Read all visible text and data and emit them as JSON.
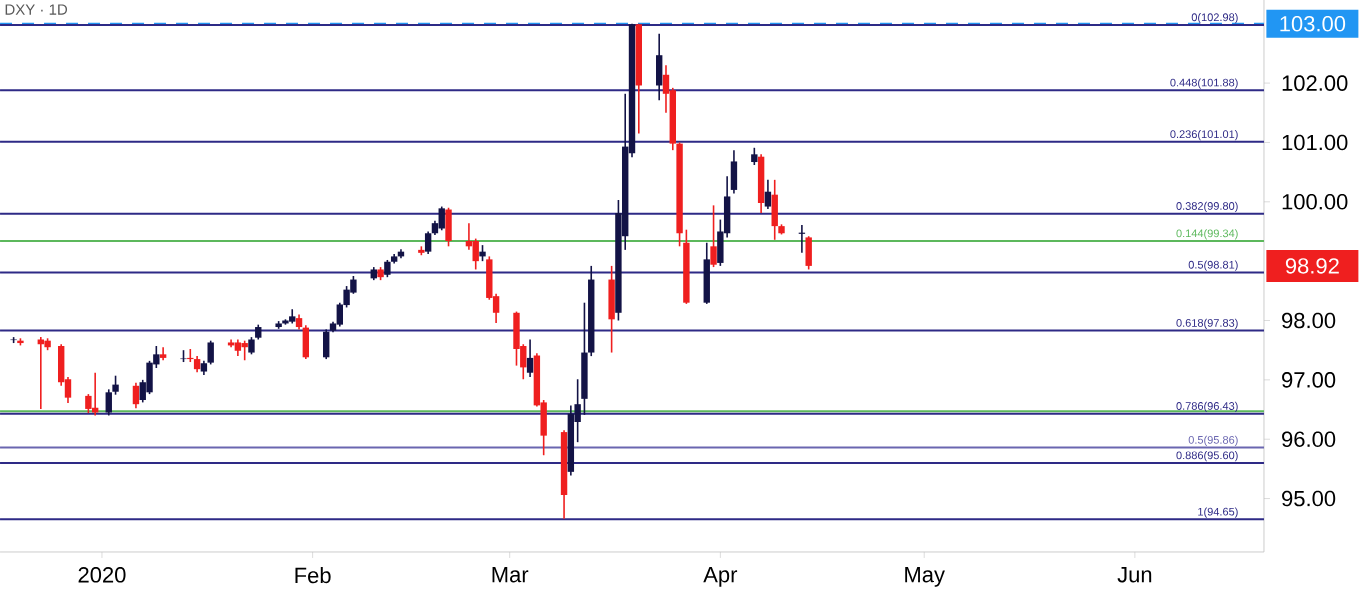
{
  "chart_data": {
    "type": "candlestick",
    "title": "DXY · 1D",
    "x": [
      "2019-12-19",
      "2019-12-20",
      "2019-12-23",
      "2019-12-24",
      "2019-12-26",
      "2019-12-27",
      "2019-12-30",
      "2019-12-31",
      "2020-01-02",
      "2020-01-03",
      "2020-01-06",
      "2020-01-07",
      "2020-01-08",
      "2020-01-09",
      "2020-01-10",
      "2020-01-13",
      "2020-01-14",
      "2020-01-15",
      "2020-01-16",
      "2020-01-17",
      "2020-01-20",
      "2020-01-21",
      "2020-01-22",
      "2020-01-23",
      "2020-01-24",
      "2020-01-27",
      "2020-01-28",
      "2020-01-29",
      "2020-01-30",
      "2020-01-31",
      "2020-02-03",
      "2020-02-04",
      "2020-02-05",
      "2020-02-06",
      "2020-02-07",
      "2020-02-10",
      "2020-02-11",
      "2020-02-12",
      "2020-02-13",
      "2020-02-14",
      "2020-02-17",
      "2020-02-18",
      "2020-02-19",
      "2020-02-20",
      "2020-02-21",
      "2020-02-24",
      "2020-02-25",
      "2020-02-26",
      "2020-02-27",
      "2020-02-28",
      "2020-03-02",
      "2020-03-03",
      "2020-03-04",
      "2020-03-05",
      "2020-03-06",
      "2020-03-09",
      "2020-03-10",
      "2020-03-11",
      "2020-03-12",
      "2020-03-13",
      "2020-03-16",
      "2020-03-17",
      "2020-03-18",
      "2020-03-19",
      "2020-03-20",
      "2020-03-23",
      "2020-03-24",
      "2020-03-25",
      "2020-03-26",
      "2020-03-27",
      "2020-03-30",
      "2020-03-31",
      "2020-04-01",
      "2020-04-02",
      "2020-04-03",
      "2020-04-06",
      "2020-04-07",
      "2020-04-08",
      "2020-04-09",
      "2020-04-10",
      "2020-04-13",
      "2020-04-14"
    ],
    "ohlc": [
      [
        97.67,
        97.72,
        97.62,
        97.68
      ],
      [
        97.66,
        97.7,
        97.58,
        97.62
      ],
      [
        97.68,
        97.72,
        96.51,
        97.6
      ],
      [
        97.66,
        97.7,
        97.5,
        97.55
      ],
      [
        97.57,
        97.6,
        96.9,
        96.96
      ],
      [
        97.01,
        97.05,
        96.61,
        96.7
      ],
      [
        96.73,
        96.76,
        96.44,
        96.51
      ],
      [
        96.53,
        97.12,
        96.4,
        96.45
      ],
      [
        96.45,
        96.84,
        96.4,
        96.79
      ],
      [
        96.8,
        97.07,
        96.75,
        96.92
      ],
      [
        96.9,
        96.95,
        96.52,
        96.59
      ],
      [
        96.66,
        97.0,
        96.62,
        96.96
      ],
      [
        96.79,
        97.32,
        96.76,
        97.29
      ],
      [
        97.26,
        97.57,
        97.2,
        97.43
      ],
      [
        97.43,
        97.55,
        97.33,
        97.37
      ],
      [
        97.35,
        97.5,
        97.3,
        97.36
      ],
      [
        97.37,
        97.52,
        97.3,
        97.35
      ],
      [
        97.35,
        97.4,
        97.13,
        97.18
      ],
      [
        97.14,
        97.32,
        97.08,
        97.28
      ],
      [
        97.29,
        97.66,
        97.26,
        97.63
      ],
      [
        97.63,
        97.68,
        97.55,
        97.58
      ],
      [
        97.63,
        97.68,
        97.4,
        97.49
      ],
      [
        97.62,
        97.66,
        97.33,
        97.55
      ],
      [
        97.46,
        97.72,
        97.43,
        97.68
      ],
      [
        97.71,
        97.93,
        97.68,
        97.89
      ],
      [
        97.89,
        97.99,
        97.86,
        97.95
      ],
      [
        97.95,
        98.02,
        97.93,
        98.0
      ],
      [
        97.98,
        98.19,
        97.95,
        98.07
      ],
      [
        98.04,
        98.1,
        97.85,
        97.89
      ],
      [
        97.88,
        97.92,
        97.35,
        97.38
      ],
      [
        97.38,
        97.85,
        97.35,
        97.81
      ],
      [
        97.83,
        97.98,
        97.8,
        97.95
      ],
      [
        97.93,
        98.3,
        97.9,
        98.27
      ],
      [
        98.26,
        98.58,
        98.22,
        98.52
      ],
      [
        98.47,
        98.75,
        98.45,
        98.69
      ],
      [
        98.71,
        98.9,
        98.68,
        98.86
      ],
      [
        98.86,
        98.9,
        98.68,
        98.73
      ],
      [
        98.77,
        99.02,
        98.73,
        98.99
      ],
      [
        98.99,
        99.12,
        98.96,
        99.08
      ],
      [
        99.08,
        99.2,
        99.05,
        99.16
      ],
      [
        99.19,
        99.25,
        99.1,
        99.14
      ],
      [
        99.16,
        99.5,
        99.12,
        99.47
      ],
      [
        99.47,
        99.68,
        99.44,
        99.64
      ],
      [
        99.55,
        99.92,
        99.52,
        99.89
      ],
      [
        99.87,
        99.9,
        99.25,
        99.34
      ],
      [
        99.34,
        99.64,
        99.19,
        99.25
      ],
      [
        99.34,
        99.38,
        98.86,
        99.0
      ],
      [
        99.08,
        99.27,
        99.0,
        99.16
      ],
      [
        99.03,
        99.08,
        98.35,
        98.38
      ],
      [
        98.41,
        98.45,
        97.96,
        98.13
      ],
      [
        98.13,
        98.15,
        97.24,
        97.52
      ],
      [
        97.57,
        97.6,
        97.01,
        97.21
      ],
      [
        97.12,
        97.68,
        97.05,
        97.37
      ],
      [
        97.41,
        97.45,
        96.55,
        96.57
      ],
      [
        96.62,
        96.66,
        95.73,
        96.06
      ],
      [
        96.12,
        96.15,
        94.66,
        95.06
      ],
      [
        95.45,
        96.57,
        95.39,
        96.43
      ],
      [
        96.29,
        97.01,
        95.95,
        96.59
      ],
      [
        96.68,
        98.3,
        96.41,
        97.46
      ],
      [
        97.46,
        98.92,
        97.4,
        98.69
      ],
      [
        98.69,
        98.92,
        97.46,
        98.02
      ],
      [
        98.13,
        100.03,
        98.0,
        99.81
      ],
      [
        99.42,
        101.82,
        99.19,
        100.93
      ],
      [
        100.82,
        103.0,
        100.75,
        102.99
      ],
      [
        102.99,
        103.0,
        101.15,
        101.96
      ],
      [
        101.96,
        102.83,
        101.71,
        102.47
      ],
      [
        102.14,
        102.3,
        101.5,
        101.82
      ],
      [
        101.88,
        101.92,
        100.87,
        100.98
      ],
      [
        100.98,
        101.0,
        99.25,
        99.47
      ],
      [
        99.31,
        99.53,
        98.28,
        98.3
      ],
      [
        98.3,
        99.31,
        98.28,
        99.03
      ],
      [
        99.25,
        99.94,
        98.9,
        98.94
      ],
      [
        98.97,
        99.7,
        98.92,
        99.5
      ],
      [
        99.47,
        100.43,
        99.4,
        100.09
      ],
      [
        100.2,
        100.87,
        100.14,
        100.68
      ],
      [
        100.67,
        100.91,
        100.62,
        100.8
      ],
      [
        100.76,
        100.8,
        99.81,
        99.98
      ],
      [
        99.92,
        100.37,
        99.88,
        100.17
      ],
      [
        100.12,
        100.37,
        99.36,
        99.59
      ],
      [
        99.59,
        99.62,
        99.45,
        99.47
      ],
      [
        99.46,
        99.61,
        99.14,
        99.48
      ],
      [
        99.4,
        99.42,
        98.86,
        98.92
      ]
    ],
    "colors": [
      "#131346",
      "#ef1f1f",
      "#ef1f1f",
      "#ef1f1f",
      "#ef1f1f",
      "#ef1f1f",
      "#ef1f1f",
      "#ef1f1f",
      "#131346",
      "#131346",
      "#ef1f1f",
      "#131346",
      "#131346",
      "#131346",
      "#ef1f1f",
      "#131346",
      "#ef1f1f",
      "#ef1f1f",
      "#131346",
      "#131346",
      "#ef1f1f",
      "#ef1f1f",
      "#ef1f1f",
      "#131346",
      "#131346",
      "#131346",
      "#131346",
      "#131346",
      "#ef1f1f",
      "#ef1f1f",
      "#131346",
      "#131346",
      "#131346",
      "#131346",
      "#131346",
      "#131346",
      "#ef1f1f",
      "#131346",
      "#131346",
      "#131346",
      "#ef1f1f",
      "#131346",
      "#131346",
      "#131346",
      "#ef1f1f",
      "#ef1f1f",
      "#ef1f1f",
      "#131346",
      "#ef1f1f",
      "#ef1f1f",
      "#ef1f1f",
      "#ef1f1f",
      "#131346",
      "#ef1f1f",
      "#ef1f1f",
      "#ef1f1f",
      "#131346",
      "#131346",
      "#131346",
      "#131346",
      "#ef1f1f",
      "#131346",
      "#131346",
      "#131346",
      "#ef1f1f",
      "#131346",
      "#ef1f1f",
      "#ef1f1f",
      "#ef1f1f",
      "#ef1f1f",
      "#131346",
      "#ef1f1f",
      "#131346",
      "#131346",
      "#131346",
      "#131346",
      "#ef1f1f",
      "#131346",
      "#ef1f1f",
      "#ef1f1f",
      "#131346",
      "#ef1f1f"
    ],
    "xlim": [
      "2019-12-17",
      "2020-06-20"
    ],
    "xticks": [
      {
        "value": "2020-01-01",
        "label": "2020"
      },
      {
        "value": "2020-02-01",
        "label": "Feb"
      },
      {
        "value": "2020-03-01",
        "label": "Mar"
      },
      {
        "value": "2020-04-01",
        "label": "Apr"
      },
      {
        "value": "2020-05-01",
        "label": "May"
      },
      {
        "value": "2020-06-01",
        "label": "Jun"
      }
    ],
    "ylim": [
      94.1,
      103.4
    ],
    "yticks": [
      {
        "value": 95,
        "label": "95.00"
      },
      {
        "value": 96,
        "label": "96.00"
      },
      {
        "value": 97,
        "label": "97.00"
      },
      {
        "value": 98,
        "label": "98.00"
      },
      {
        "value": 100,
        "label": "100.00"
      },
      {
        "value": 101,
        "label": "101.00"
      },
      {
        "value": 102,
        "label": "102.00"
      }
    ],
    "ref_lines": [
      {
        "axis": "y",
        "value": 103,
        "label": "103.00",
        "color": "#2196f3",
        "line_style": "dashed"
      },
      {
        "axis": "y",
        "value": 102.98,
        "label": "0(102.98)",
        "color": "#2e2a86"
      },
      {
        "axis": "y",
        "value": 101.88,
        "label": "0.448(101.88)",
        "color": "#2e2a86"
      },
      {
        "axis": "y",
        "value": 101.01,
        "label": "0.236(101.01)",
        "color": "#2e2a86"
      },
      {
        "axis": "y",
        "value": 99.8,
        "label": "0.382(99.80)",
        "color": "#2e2a86"
      },
      {
        "axis": "y",
        "value": 99.34,
        "label": "0.144(99.34)",
        "color": "#5cb85c"
      },
      {
        "axis": "y",
        "value": 98.81,
        "label": "0.5(98.81)",
        "color": "#2e2a86"
      },
      {
        "axis": "y",
        "value": 97.83,
        "label": "0.618(97.83)",
        "color": "#2e2a86"
      },
      {
        "axis": "y",
        "value": 96.47,
        "color": "#5cb85c"
      },
      {
        "axis": "y",
        "value": 96.43,
        "label": "0.786(96.43)",
        "color": "#2e2a86"
      },
      {
        "axis": "y",
        "value": 95.86,
        "label": "0.5(95.86)",
        "color": "#6a66b0"
      },
      {
        "axis": "y",
        "value": 95.6,
        "label": "0.886(95.60)",
        "color": "#2e2a86"
      },
      {
        "axis": "y",
        "value": 94.65,
        "label": "1(94.65)",
        "color": "#2e2a86"
      }
    ],
    "annotations": [
      "98.92"
    ]
  }
}
